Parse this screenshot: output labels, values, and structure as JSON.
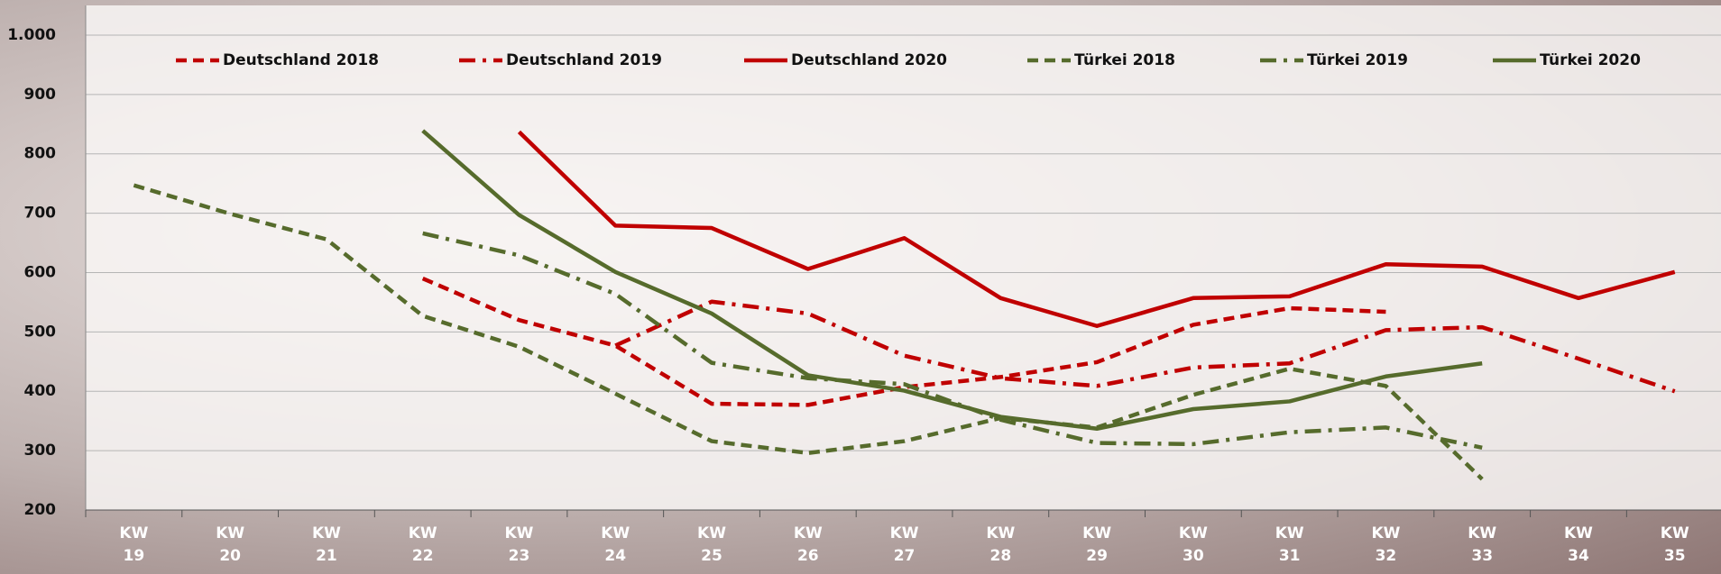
{
  "chart_data": {
    "type": "line",
    "categories": [
      "KW 19",
      "KW 20",
      "KW 21",
      "KW 22",
      "KW 23",
      "KW 24",
      "KW 25",
      "KW 26",
      "KW 27",
      "KW 28",
      "KW 29",
      "KW 30",
      "KW 31",
      "KW 32",
      "KW 33",
      "KW 34",
      "KW 35"
    ],
    "series": [
      {
        "name": "Deutschland 2018",
        "color": "#c00000",
        "dash": "dashed",
        "values": [
          null,
          null,
          null,
          590,
          520,
          477,
          379,
          377,
          407,
          424,
          449,
          512,
          540,
          534,
          null,
          null,
          null
        ]
      },
      {
        "name": "Deutschland 2019",
        "color": "#c00000",
        "dash": "dashdot",
        "values": [
          null,
          null,
          null,
          null,
          null,
          477,
          551,
          531,
          460,
          422,
          409,
          440,
          447,
          503,
          508,
          455,
          400
        ]
      },
      {
        "name": "Deutschland 2020",
        "color": "#c00000",
        "dash": "solid",
        "values": [
          null,
          null,
          null,
          null,
          837,
          679,
          675,
          606,
          658,
          557,
          510,
          557,
          560,
          614,
          610,
          557,
          601
        ]
      },
      {
        "name": "Türkei 2018",
        "color": "#566b2c",
        "dash": "dashed",
        "values": [
          747,
          699,
          656,
          527,
          475,
          396,
          316,
          296,
          316,
          355,
          339,
          394,
          438,
          409,
          252,
          null,
          null
        ]
      },
      {
        "name": "Türkei 2019",
        "color": "#566b2c",
        "dash": "dashdot",
        "values": [
          null,
          null,
          null,
          666,
          629,
          564,
          448,
          422,
          412,
          352,
          313,
          311,
          331,
          339,
          305,
          null,
          null
        ]
      },
      {
        "name": "Türkei 2020",
        "color": "#566b2c",
        "dash": "solid",
        "values": [
          null,
          null,
          null,
          839,
          697,
          601,
          531,
          427,
          401,
          357,
          337,
          370,
          383,
          425,
          447,
          null,
          null
        ]
      }
    ],
    "ylim": [
      200,
      1050
    ],
    "yticks": [
      200,
      300,
      400,
      500,
      600,
      700,
      800,
      900,
      {
        "value": 1000,
        "label": "1.000"
      }
    ],
    "grid": true
  }
}
